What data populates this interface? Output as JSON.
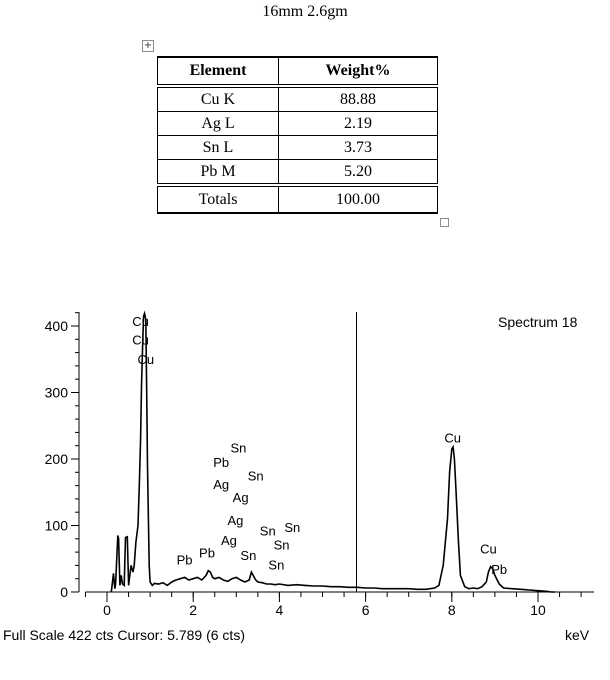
{
  "caption": "16mm  2.6gm",
  "table": {
    "headers": [
      "Element",
      "Weight%"
    ],
    "rows": [
      {
        "element": "Cu K",
        "weight": "88.88"
      },
      {
        "element": "Ag L",
        "weight": "2.19"
      },
      {
        "element": "Sn L",
        "weight": "3.73"
      },
      {
        "element": "Pb M",
        "weight": "5.20"
      }
    ],
    "total": {
      "label": "Totals",
      "weight": "100.00"
    }
  },
  "chart_data": {
    "type": "line",
    "title": "Spectrum 18",
    "xlabel": "keV",
    "ylabel": "",
    "xlim": [
      -0.5,
      11.3
    ],
    "ylim": [
      0,
      420
    ],
    "x_ticks": [
      0,
      2,
      4,
      6,
      8,
      10
    ],
    "y_ticks": [
      0,
      100,
      200,
      300,
      400
    ],
    "footer": "Full Scale 422 cts Cursor: 5.789  (6 cts)",
    "cursor_x": 5.789,
    "series": [
      {
        "x": [
          0.1,
          0.15,
          0.18,
          0.2,
          0.25,
          0.27,
          0.3,
          0.33,
          0.36,
          0.4,
          0.43,
          0.47,
          0.5,
          0.53,
          0.56,
          0.6,
          0.63,
          0.67,
          0.72,
          0.75,
          0.78,
          0.8,
          0.83,
          0.85,
          0.87,
          0.9,
          0.92,
          0.94,
          0.96,
          0.98,
          1.0,
          1.05,
          1.1,
          1.2,
          1.3,
          1.4,
          1.5,
          1.6,
          1.7,
          1.8,
          1.9,
          2.0,
          2.1,
          2.2,
          2.3,
          2.35,
          2.4,
          2.45,
          2.5,
          2.6,
          2.7,
          2.8,
          2.9,
          3.0,
          3.1,
          3.2,
          3.3,
          3.35,
          3.4,
          3.45,
          3.5,
          3.6,
          3.7,
          3.8,
          3.9,
          4.0,
          4.2,
          4.4,
          4.6,
          4.8,
          5.0,
          5.2,
          5.4,
          5.6,
          5.8,
          6.0,
          6.2,
          6.4,
          6.6,
          6.8,
          7.0,
          7.2,
          7.4,
          7.6,
          7.7,
          7.8,
          7.9,
          7.95,
          8.0,
          8.03,
          8.06,
          8.1,
          8.15,
          8.2,
          8.3,
          8.4,
          8.5,
          8.6,
          8.7,
          8.8,
          8.85,
          8.9,
          8.95,
          9.0,
          9.1,
          9.2,
          9.4,
          9.6,
          9.8,
          10.0,
          10.2,
          10.3,
          10.4
        ],
        "y": [
          0,
          28,
          5,
          12,
          85,
          80,
          10,
          25,
          12,
          10,
          82,
          83,
          10,
          25,
          40,
          30,
          40,
          75,
          100,
          160,
          230,
          310,
          380,
          415,
          419,
          410,
          300,
          190,
          110,
          40,
          15,
          10,
          13,
          12,
          14,
          10,
          15,
          18,
          20,
          22,
          18,
          20,
          22,
          18,
          25,
          32,
          30,
          22,
          20,
          22,
          18,
          16,
          20,
          22,
          18,
          15,
          18,
          30,
          24,
          18,
          15,
          14,
          12,
          12,
          11,
          12,
          10,
          11,
          10,
          9,
          9,
          8,
          8,
          7,
          7,
          6,
          6,
          5,
          5,
          5,
          5,
          4,
          4,
          6,
          10,
          40,
          110,
          180,
          215,
          218,
          200,
          150,
          80,
          25,
          8,
          5,
          6,
          5,
          8,
          15,
          30,
          38,
          35,
          25,
          12,
          6,
          5,
          4,
          3,
          2,
          1,
          0,
          0
        ]
      }
    ],
    "peak_labels": [
      {
        "text": "Cu",
        "x": 0.78,
        "y": 400
      },
      {
        "text": "Cu",
        "x": 0.78,
        "y": 372
      },
      {
        "text": "Cu",
        "x": 0.9,
        "y": 343
      },
      {
        "text": "Sn",
        "x": 3.05,
        "y": 210
      },
      {
        "text": "Pb",
        "x": 2.65,
        "y": 188
      },
      {
        "text": "Sn",
        "x": 3.45,
        "y": 168
      },
      {
        "text": "Ag",
        "x": 2.65,
        "y": 155
      },
      {
        "text": "Ag",
        "x": 3.1,
        "y": 135
      },
      {
        "text": "Ag",
        "x": 2.98,
        "y": 101
      },
      {
        "text": "Sn",
        "x": 3.73,
        "y": 85
      },
      {
        "text": "Sn",
        "x": 4.3,
        "y": 90
      },
      {
        "text": "Ag",
        "x": 2.83,
        "y": 71
      },
      {
        "text": "Sn",
        "x": 4.05,
        "y": 64
      },
      {
        "text": "Pb",
        "x": 1.8,
        "y": 41
      },
      {
        "text": "Pb",
        "x": 2.32,
        "y": 52
      },
      {
        "text": "Sn",
        "x": 3.28,
        "y": 48
      },
      {
        "text": "Sn",
        "x": 3.93,
        "y": 34
      },
      {
        "text": "Cu",
        "x": 8.02,
        "y": 225
      },
      {
        "text": "Cu",
        "x": 8.85,
        "y": 58
      },
      {
        "text": "Pb",
        "x": 9.1,
        "y": 27
      }
    ]
  }
}
